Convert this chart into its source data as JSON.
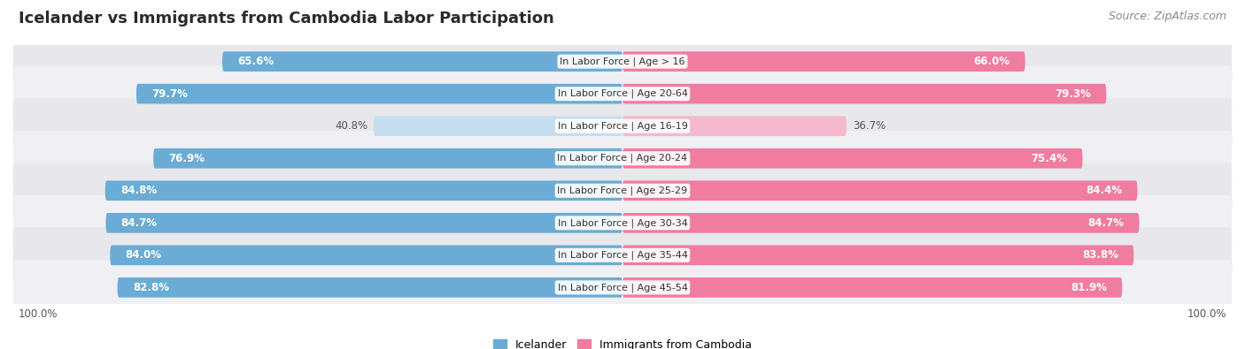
{
  "title": "Icelander vs Immigrants from Cambodia Labor Participation",
  "source": "Source: ZipAtlas.com",
  "categories": [
    "In Labor Force | Age > 16",
    "In Labor Force | Age 20-64",
    "In Labor Force | Age 16-19",
    "In Labor Force | Age 20-24",
    "In Labor Force | Age 25-29",
    "In Labor Force | Age 30-34",
    "In Labor Force | Age 35-44",
    "In Labor Force | Age 45-54"
  ],
  "icelander_values": [
    65.6,
    79.7,
    40.8,
    76.9,
    84.8,
    84.7,
    84.0,
    82.8
  ],
  "cambodia_values": [
    66.0,
    79.3,
    36.7,
    75.4,
    84.4,
    84.7,
    83.8,
    81.9
  ],
  "icelander_color": "#6aacd5",
  "cambodia_color": "#f07ca0",
  "icelander_light_color": "#c5dff0",
  "cambodia_light_color": "#f5b8cc",
  "row_bg_color_dark": "#e8e8ec",
  "row_bg_color_light": "#f0f0f4",
  "title_color": "#2a2a2a",
  "source_color": "#888888",
  "value_text_color_white": "#ffffff",
  "value_text_color_dark": "#555555",
  "label_color": "#333333",
  "max_value": 100.0,
  "legend_icelander": "Icelander",
  "legend_cambodia": "Immigrants from Cambodia",
  "title_fontsize": 13,
  "source_fontsize": 9,
  "bar_label_fontsize": 8.5,
  "cat_label_fontsize": 8,
  "legend_fontsize": 9
}
